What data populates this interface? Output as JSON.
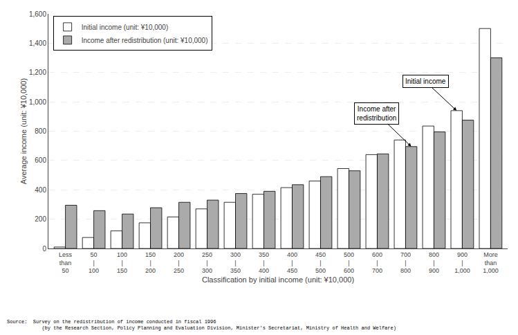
{
  "chart_data": {
    "type": "bar",
    "xlabel": "Classification by initial income (unit: ¥10,000)",
    "ylabel": "Average income (unit: ¥10,000)",
    "categories": [
      "Less\nthan\n50",
      "50\n|\n100",
      "100\n|\n150",
      "150\n|\n200",
      "200\n|\n250",
      "250\n|\n300",
      "300\n|\n350",
      "350\n|\n400",
      "400\n|\n450",
      "450\n|\n500",
      "500\n|\n600",
      "600\n|\n700",
      "700\n|\n800",
      "800\n|\n900",
      "900\n|\n1,000",
      "More\nthan\n1,000"
    ],
    "series": [
      {
        "name": "Initial income (unit: ¥10,000)",
        "color": "#ffffff",
        "values": [
          10,
          75,
          120,
          175,
          215,
          270,
          315,
          370,
          415,
          460,
          545,
          640,
          740,
          835,
          940,
          1500
        ]
      },
      {
        "name": "Income after redistribution (unit: ¥10,000)",
        "color": "#aaaaaa",
        "values": [
          295,
          258,
          235,
          278,
          315,
          330,
          375,
          390,
          435,
          490,
          530,
          645,
          695,
          795,
          875,
          1300
        ]
      }
    ],
    "ylim": [
      0,
      1600
    ],
    "yticks": [
      0,
      200,
      400,
      600,
      800,
      {
        "value": 1000,
        "label": "1,000"
      },
      {
        "value": 1200,
        "label": "1,200"
      },
      {
        "value": 1400,
        "label": "1,400"
      },
      {
        "value": 1600,
        "label": "1,600"
      }
    ],
    "grid": true,
    "legend": "upper left",
    "annotations": [
      {
        "text": "Initial income",
        "series": "Initial income (unit: ¥10,000)",
        "category": "900\n|\n1,000"
      },
      {
        "text": "Income after\nredistribution",
        "series": "Income after redistribution (unit: ¥10,000)",
        "category": "700\n|\n800"
      }
    ],
    "source": [
      "Source:  Survey on the redistribution of income conducted in fiscal 1996",
      "            (by the Research Section, Policy Planning and Evaluation Division, Minister's Secretariat, Ministry of Health and Welfare)"
    ]
  }
}
